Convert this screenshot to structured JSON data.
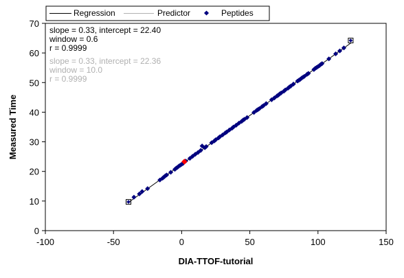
{
  "chart_data": {
    "type": "scatter",
    "xlabel": "DIA-TTOF-tutorial",
    "ylabel": "Measured Time",
    "xlim": [
      -100,
      150
    ],
    "ylim": [
      0,
      70
    ],
    "xticks": [
      "-100",
      "-50",
      "0",
      "50",
      "100",
      "150"
    ],
    "yticks": [
      "0",
      "10",
      "20",
      "30",
      "40",
      "50",
      "60",
      "70"
    ],
    "xtick_values": [
      -100,
      -50,
      0,
      50,
      100,
      150
    ],
    "ytick_values": [
      0,
      10,
      20,
      30,
      40,
      50,
      60,
      70
    ],
    "legend": {
      "placement": "top",
      "entries": [
        {
          "label": "Regression",
          "color": "#000000",
          "kind": "line"
        },
        {
          "label": "Predictor",
          "color": "#b0b0b0",
          "kind": "line"
        },
        {
          "label": "Peptides",
          "color": "#00007f",
          "kind": "marker"
        }
      ]
    },
    "annotations": {
      "regression": {
        "color": "#000000",
        "lines": [
          "slope = 0.33, intercept = 22.40",
          "window = 0.6",
          "r = 0.9999"
        ]
      },
      "predictor": {
        "color": "#b0b0b0",
        "lines": [
          "slope = 0.33, intercept = 22.36",
          "window = 10.0",
          "r = 0.9999"
        ]
      }
    },
    "regression": {
      "slope": 0.33,
      "intercept": 22.4,
      "x_range": [
        -39,
        124
      ]
    },
    "series": [
      {
        "name": "Peptides",
        "color": "#00007f",
        "points": [
          [
            -35,
            11.3
          ],
          [
            -31,
            12.4
          ],
          [
            -29,
            13.2
          ],
          [
            -25,
            14.2
          ],
          [
            -16,
            17.1
          ],
          [
            -14,
            17.7
          ],
          [
            -13,
            18.1
          ],
          [
            -12,
            18.5
          ],
          [
            -11,
            18.8
          ],
          [
            -8,
            19.7
          ],
          [
            -5,
            20.7
          ],
          [
            -4,
            21.1
          ],
          [
            -3,
            21.4
          ],
          [
            -2,
            21.8
          ],
          [
            -1,
            22.1
          ],
          [
            0,
            22.4
          ],
          [
            1,
            22.7
          ],
          [
            3,
            23.5
          ],
          [
            6,
            24.4
          ],
          [
            8,
            25.1
          ],
          [
            10,
            25.8
          ],
          [
            12,
            26.4
          ],
          [
            14,
            27.1
          ],
          [
            15,
            28.6
          ],
          [
            17,
            28.0
          ],
          [
            18,
            28.4
          ],
          [
            22,
            29.7
          ],
          [
            24,
            30.3
          ],
          [
            25,
            30.7
          ],
          [
            27,
            31.3
          ],
          [
            28,
            31.7
          ],
          [
            30,
            32.3
          ],
          [
            32,
            33.0
          ],
          [
            33,
            33.3
          ],
          [
            35,
            34.0
          ],
          [
            37,
            34.6
          ],
          [
            38,
            35.0
          ],
          [
            40,
            35.6
          ],
          [
            42,
            36.3
          ],
          [
            44,
            36.9
          ],
          [
            45,
            37.3
          ],
          [
            46,
            37.6
          ],
          [
            48,
            38.2
          ],
          [
            53,
            39.9
          ],
          [
            55,
            40.6
          ],
          [
            56,
            40.9
          ],
          [
            57,
            41.2
          ],
          [
            59,
            41.9
          ],
          [
            60,
            42.2
          ],
          [
            62,
            42.9
          ],
          [
            66,
            44.2
          ],
          [
            68,
            44.8
          ],
          [
            70,
            45.5
          ],
          [
            71,
            45.8
          ],
          [
            72,
            46.2
          ],
          [
            73,
            46.5
          ],
          [
            75,
            47.1
          ],
          [
            76,
            47.5
          ],
          [
            78,
            48.1
          ],
          [
            79,
            48.5
          ],
          [
            80,
            48.8
          ],
          [
            82,
            49.5
          ],
          [
            85,
            50.5
          ],
          [
            86,
            50.8
          ],
          [
            87,
            51.1
          ],
          [
            88,
            51.5
          ],
          [
            89,
            51.8
          ],
          [
            90,
            52.1
          ],
          [
            92,
            52.8
          ],
          [
            93,
            53.1
          ],
          [
            97,
            54.4
          ],
          [
            98,
            54.8
          ],
          [
            99,
            55.1
          ],
          [
            100,
            55.4
          ],
          [
            101,
            55.7
          ],
          [
            102,
            56.1
          ],
          [
            103,
            56.4
          ],
          [
            108,
            58.0
          ],
          [
            113,
            59.7
          ],
          [
            116,
            60.7
          ],
          [
            119,
            61.7
          ]
        ]
      }
    ],
    "highlighted_point": {
      "x": 2,
      "y": 23.3,
      "color": "#ff0000"
    },
    "outlier_points": [
      [
        -39,
        9.7
      ],
      [
        124,
        64.2
      ]
    ]
  }
}
